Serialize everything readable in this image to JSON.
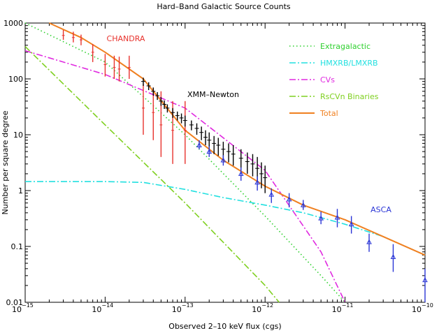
{
  "chart_data": {
    "type": "line",
    "title": "Hard–Band Galactic Source Counts",
    "xlabel": "Observed 2–10 keV flux (cgs)",
    "ylabel": "Number per square degree",
    "x_scale": "log",
    "y_scale": "log",
    "xlim": [
      1e-15,
      1e-10
    ],
    "ylim": [
      0.01,
      1000
    ],
    "grid": false,
    "legend": "top-right",
    "x_ticks": [
      {
        "mant": "10",
        "exp": "−15"
      },
      {
        "mant": "10",
        "exp": "−14"
      },
      {
        "mant": "10",
        "exp": "−13"
      },
      {
        "mant": "10",
        "exp": "−12"
      },
      {
        "mant": "10",
        "exp": "−11"
      },
      {
        "mant": "10",
        "exp": "−10"
      }
    ],
    "y_ticks": [
      "0.01",
      "0.1",
      "1",
      "10",
      "100",
      "1000"
    ],
    "annotations": [
      {
        "text": "CHANDRA",
        "color": "#e8322d"
      },
      {
        "text": "XMM–Newton",
        "color": "#000000"
      },
      {
        "text": "ASCA",
        "color": "#2a35d6"
      }
    ],
    "series": [
      {
        "name": "Extragalactic",
        "style": "dotted",
        "color": "#2ed02e",
        "x": [
          1e-15,
          1e-14,
          1e-13,
          1e-12,
          5e-12,
          1e-11
        ],
        "y": [
          1000,
          200,
          10,
          0.35,
          0.03,
          0.01
        ]
      },
      {
        "name": "HMXRB/LMXRB",
        "style": "dash-dot",
        "color": "#22e0e0",
        "x": [
          1e-15,
          1e-14,
          3e-14,
          1e-13,
          3e-13,
          1e-12,
          3e-12,
          1e-11,
          3e-11,
          1e-10
        ],
        "y": [
          1.45,
          1.45,
          1.4,
          1.05,
          0.75,
          0.55,
          0.4,
          0.25,
          0.15,
          0.07
        ]
      },
      {
        "name": "CVs",
        "style": "dash-dot",
        "color": "#e02ae0",
        "x": [
          1e-15,
          1e-14,
          1e-13,
          1e-12,
          5e-12,
          1e-11
        ],
        "y": [
          320,
          120,
          30,
          2.3,
          0.08,
          0.01
        ]
      },
      {
        "name": "RsCVn Binaries",
        "style": "dash-dot",
        "color": "#7fd020",
        "x": [
          1e-15,
          1e-14,
          1e-13,
          1e-12,
          1.5e-12
        ],
        "y": [
          380,
          15,
          0.6,
          0.02,
          0.01
        ]
      },
      {
        "name": "Total",
        "style": "solid",
        "color": "#f08020",
        "x": [
          2e-15,
          5e-15,
          1e-14,
          3e-14,
          1e-13,
          3e-13,
          1e-12,
          3e-12,
          1e-11,
          3e-11,
          1e-10
        ],
        "y": [
          1000,
          550,
          300,
          100,
          12,
          3.5,
          1.2,
          0.55,
          0.3,
          0.15,
          0.07
        ]
      }
    ],
    "points": [
      {
        "survey": "CHANDRA",
        "color": "#e8322d",
        "marker": "tick",
        "x": [
          3e-15,
          4e-15,
          5e-15,
          7e-15,
          1e-14,
          1.3e-14,
          1.5e-14,
          2e-14,
          3e-14,
          4e-14,
          5e-14,
          7e-14,
          1e-13
        ],
        "y": [
          600,
          550,
          500,
          300,
          180,
          160,
          150,
          160,
          30,
          25,
          15,
          12,
          12
        ],
        "lo": [
          500,
          450,
          400,
          200,
          110,
          100,
          90,
          100,
          10,
          8,
          4,
          3,
          3
        ],
        "hi": [
          750,
          700,
          620,
          420,
          280,
          260,
          250,
          260,
          80,
          70,
          60,
          40,
          40
        ]
      },
      {
        "survey": "XMM–Newton",
        "color": "#000000",
        "marker": "cross",
        "x": [
          3e-14,
          3.5e-14,
          4e-14,
          4.5e-14,
          5e-14,
          5.5e-14,
          6e-14,
          7e-14,
          8e-14,
          9e-14,
          1e-13,
          1.2e-13,
          1.4e-13,
          1.6e-13,
          1.8e-13,
          2e-13,
          2.3e-13,
          2.6e-13,
          3e-13,
          3.5e-13,
          4e-13,
          5e-13,
          6e-13,
          7e-13,
          8e-13,
          9e-13,
          1e-12
        ],
        "y": [
          90,
          75,
          60,
          50,
          40,
          35,
          30,
          25,
          22,
          20,
          18,
          15,
          13,
          11,
          9,
          8,
          7,
          6.5,
          5.5,
          5,
          4.5,
          3.8,
          3.3,
          3,
          2.5,
          2,
          1.7
        ],
        "lo": [
          75,
          63,
          50,
          42,
          33,
          29,
          25,
          20,
          18,
          16,
          14,
          12,
          10,
          8,
          6.5,
          5.5,
          4.5,
          4.2,
          3.5,
          3.2,
          2.8,
          2.3,
          2,
          1.8,
          1.4,
          1.1,
          0.9
        ],
        "hi": [
          105,
          87,
          70,
          58,
          47,
          41,
          35,
          30,
          26,
          24,
          22,
          18,
          16,
          14,
          12,
          11,
          9.5,
          8.8,
          7.5,
          7,
          6.5,
          5.5,
          4.8,
          4.5,
          4,
          3.2,
          2.8
        ]
      },
      {
        "survey": "ASCA",
        "color": "#2a35d6",
        "marker": "triangle",
        "x": [
          1.5e-13,
          2e-13,
          3e-13,
          5e-13,
          8e-13,
          1.2e-12,
          2e-12,
          3e-12,
          5e-12,
          8e-12,
          1.2e-11,
          2e-11,
          4e-11,
          1e-10
        ],
        "y": [
          6.5,
          5,
          3.5,
          2,
          1.4,
          0.85,
          0.7,
          0.55,
          0.32,
          0.33,
          0.25,
          0.12,
          0.065,
          0.025
        ],
        "lo": [
          5.5,
          4,
          2.8,
          1.5,
          1,
          0.6,
          0.5,
          0.45,
          0.25,
          0.22,
          0.17,
          0.08,
          0.035,
          0.01
        ],
        "hi": [
          8,
          6.2,
          4.3,
          2.6,
          1.8,
          1.1,
          0.9,
          0.68,
          0.42,
          0.47,
          0.35,
          0.17,
          0.11,
          0.04
        ]
      }
    ]
  }
}
